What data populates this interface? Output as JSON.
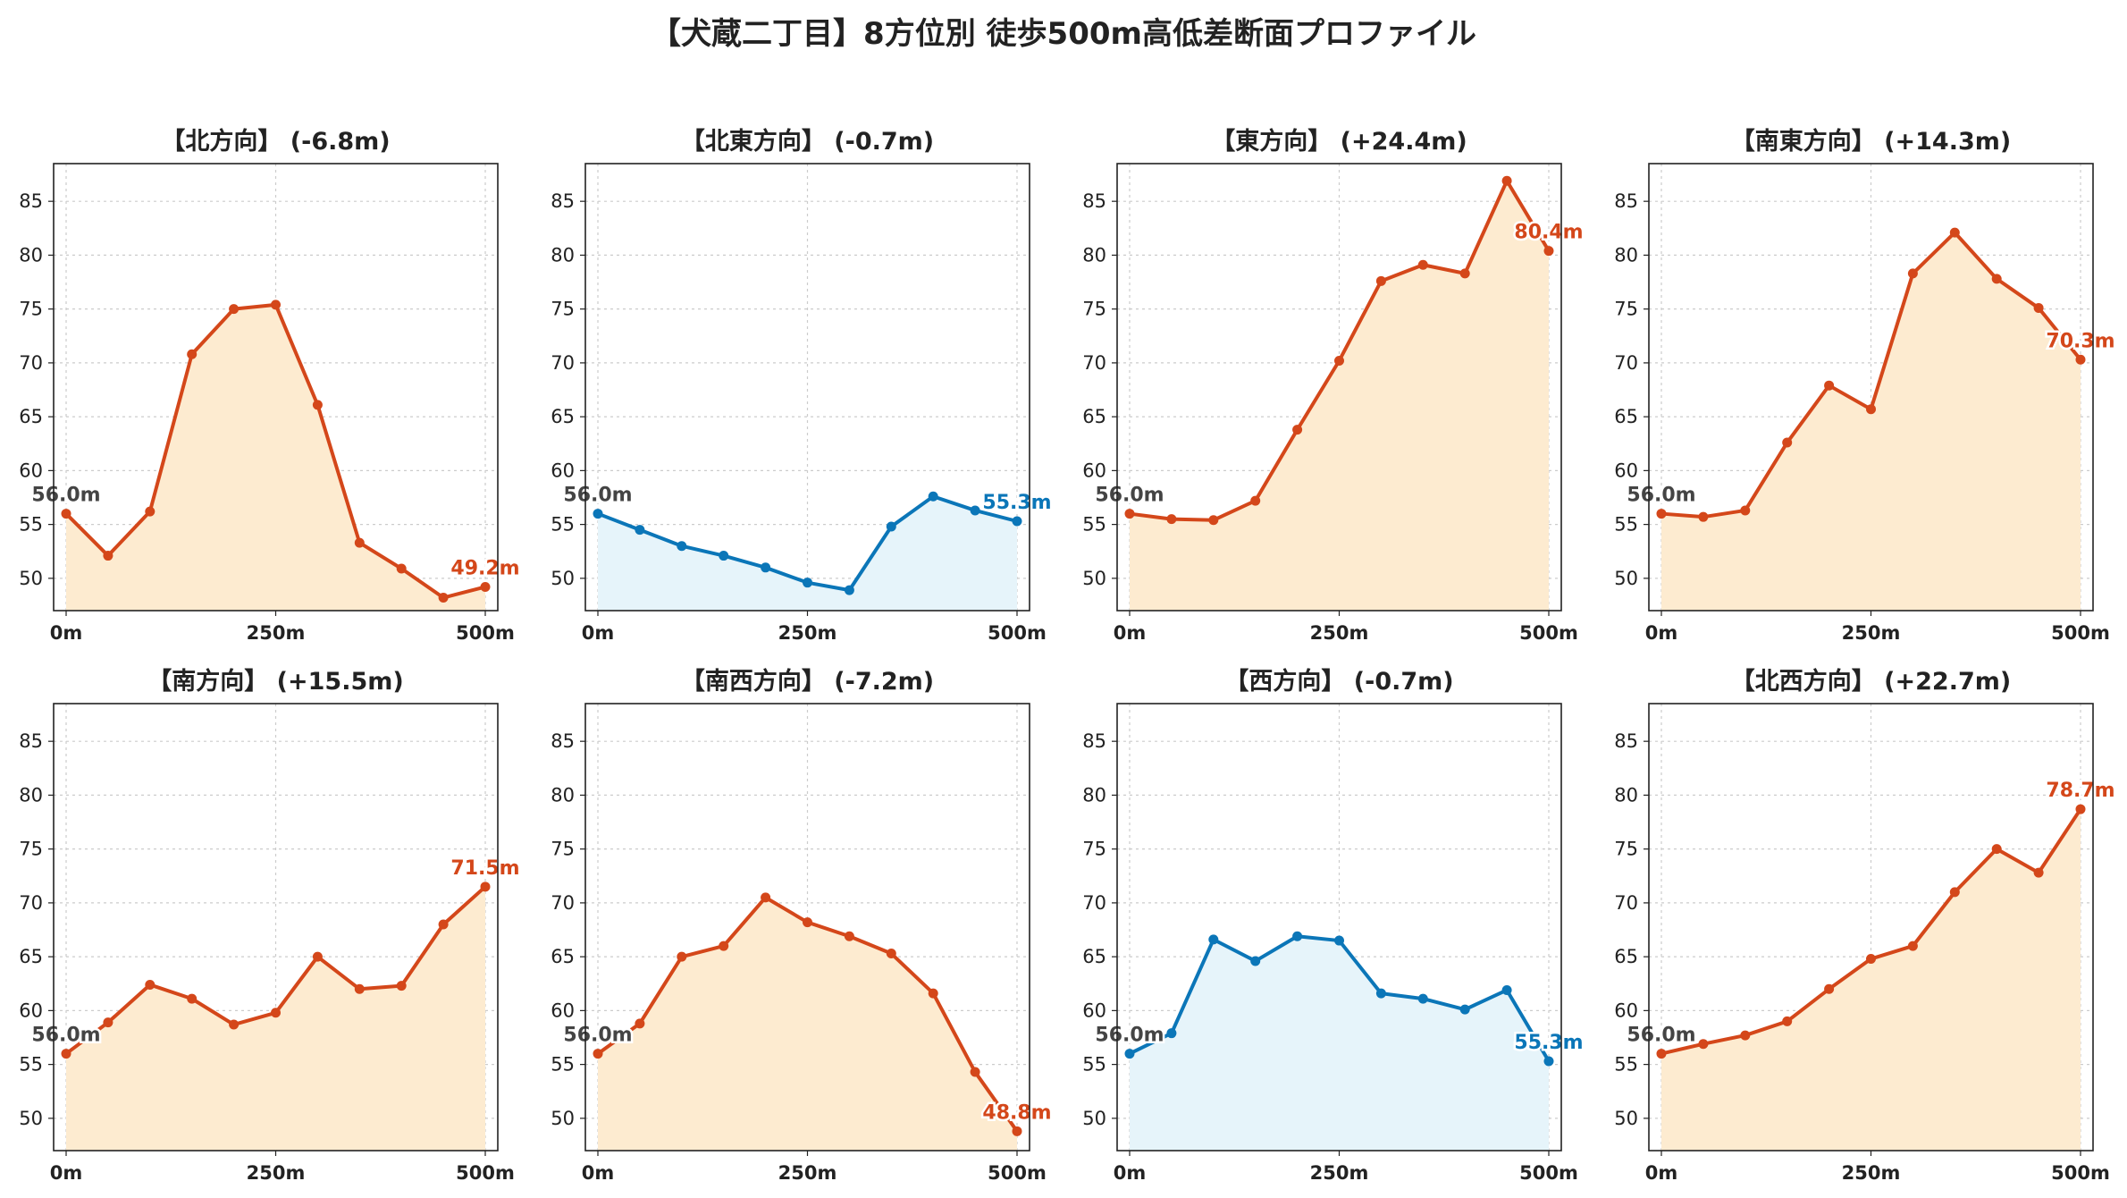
{
  "suptitle": "【犬蔵二丁目】8方位別 徒歩500m高低差断面プロファイル",
  "colors": {
    "uphill_line": "#d4471a",
    "uphill_fill": "#fdebd0",
    "flat_line": "#0b76b8",
    "flat_fill": "#e6f4fa",
    "start_label": "#444444",
    "grid": "#cccccc"
  },
  "chart_data": [
    {
      "type": "area",
      "title": "【北方向】 (-6.8m)",
      "x": [
        0,
        50,
        100,
        150,
        200,
        250,
        300,
        350,
        400,
        450,
        500
      ],
      "values": [
        56.0,
        52.1,
        56.2,
        70.8,
        75.0,
        75.4,
        66.1,
        53.3,
        50.9,
        48.2,
        49.2
      ],
      "xticks": [
        "0m",
        "250m",
        "500m"
      ],
      "yticks": [
        "50",
        "55",
        "60",
        "65",
        "70",
        "75",
        "80",
        "85"
      ],
      "ylim": [
        47,
        88.5
      ],
      "start_label": "56.0m",
      "end_label": "49.2m",
      "color_scheme": "uphill",
      "grid": true
    },
    {
      "type": "area",
      "title": "【北東方向】 (-0.7m)",
      "x": [
        0,
        50,
        100,
        150,
        200,
        250,
        300,
        350,
        400,
        450,
        500
      ],
      "values": [
        56.0,
        54.5,
        53.0,
        52.1,
        51.0,
        49.6,
        48.9,
        54.8,
        57.6,
        56.3,
        55.3
      ],
      "xticks": [
        "0m",
        "250m",
        "500m"
      ],
      "yticks": [
        "50",
        "55",
        "60",
        "65",
        "70",
        "75",
        "80",
        "85"
      ],
      "ylim": [
        47,
        88.5
      ],
      "start_label": "56.0m",
      "end_label": "55.3m",
      "color_scheme": "flat",
      "grid": true
    },
    {
      "type": "area",
      "title": "【東方向】 (+24.4m)",
      "x": [
        0,
        50,
        100,
        150,
        200,
        250,
        300,
        350,
        400,
        450,
        500
      ],
      "values": [
        56.0,
        55.5,
        55.4,
        57.2,
        63.8,
        70.2,
        77.6,
        79.1,
        78.3,
        86.9,
        80.4
      ],
      "xticks": [
        "0m",
        "250m",
        "500m"
      ],
      "yticks": [
        "50",
        "55",
        "60",
        "65",
        "70",
        "75",
        "80",
        "85"
      ],
      "ylim": [
        47,
        88.5
      ],
      "start_label": "56.0m",
      "end_label": "80.4m",
      "color_scheme": "uphill",
      "grid": true
    },
    {
      "type": "area",
      "title": "【南東方向】 (+14.3m)",
      "x": [
        0,
        50,
        100,
        150,
        200,
        250,
        300,
        350,
        400,
        450,
        500
      ],
      "values": [
        56.0,
        55.7,
        56.3,
        62.6,
        67.9,
        65.7,
        78.3,
        82.1,
        77.8,
        75.1,
        70.3
      ],
      "xticks": [
        "0m",
        "250m",
        "500m"
      ],
      "yticks": [
        "50",
        "55",
        "60",
        "65",
        "70",
        "75",
        "80",
        "85"
      ],
      "ylim": [
        47,
        88.5
      ],
      "start_label": "56.0m",
      "end_label": "70.3m",
      "color_scheme": "uphill",
      "grid": true
    },
    {
      "type": "area",
      "title": "【南方向】 (+15.5m)",
      "x": [
        0,
        50,
        100,
        150,
        200,
        250,
        300,
        350,
        400,
        450,
        500
      ],
      "values": [
        56.0,
        58.9,
        62.4,
        61.1,
        58.7,
        59.8,
        65.0,
        62.0,
        62.3,
        68.0,
        71.5
      ],
      "xticks": [
        "0m",
        "250m",
        "500m"
      ],
      "yticks": [
        "50",
        "55",
        "60",
        "65",
        "70",
        "75",
        "80",
        "85"
      ],
      "ylim": [
        47,
        88.5
      ],
      "start_label": "56.0m",
      "end_label": "71.5m",
      "color_scheme": "uphill",
      "grid": true
    },
    {
      "type": "area",
      "title": "【南西方向】 (-7.2m)",
      "x": [
        0,
        50,
        100,
        150,
        200,
        250,
        300,
        350,
        400,
        450,
        500
      ],
      "values": [
        56.0,
        58.8,
        65.0,
        66.0,
        70.5,
        68.2,
        66.9,
        65.3,
        61.6,
        54.3,
        48.8
      ],
      "xticks": [
        "0m",
        "250m",
        "500m"
      ],
      "yticks": [
        "50",
        "55",
        "60",
        "65",
        "70",
        "75",
        "80",
        "85"
      ],
      "ylim": [
        47,
        88.5
      ],
      "start_label": "56.0m",
      "end_label": "48.8m",
      "color_scheme": "uphill",
      "grid": true
    },
    {
      "type": "area",
      "title": "【西方向】 (-0.7m)",
      "x": [
        0,
        50,
        100,
        150,
        200,
        250,
        300,
        350,
        400,
        450,
        500
      ],
      "values": [
        56.0,
        57.9,
        66.6,
        64.6,
        66.9,
        66.5,
        61.6,
        61.1,
        60.1,
        61.9,
        55.3
      ],
      "xticks": [
        "0m",
        "250m",
        "500m"
      ],
      "yticks": [
        "50",
        "55",
        "60",
        "65",
        "70",
        "75",
        "80",
        "85"
      ],
      "ylim": [
        47,
        88.5
      ],
      "start_label": "56.0m",
      "end_label": "55.3m",
      "color_scheme": "flat",
      "grid": true
    },
    {
      "type": "area",
      "title": "【北西方向】 (+22.7m)",
      "x": [
        0,
        50,
        100,
        150,
        200,
        250,
        300,
        350,
        400,
        450,
        500
      ],
      "values": [
        56.0,
        56.9,
        57.7,
        59.0,
        62.0,
        64.8,
        66.0,
        71.0,
        75.0,
        72.8,
        78.7
      ],
      "xticks": [
        "0m",
        "250m",
        "500m"
      ],
      "yticks": [
        "50",
        "55",
        "60",
        "65",
        "70",
        "75",
        "80",
        "85"
      ],
      "ylim": [
        47,
        88.5
      ],
      "start_label": "56.0m",
      "end_label": "78.7m",
      "color_scheme": "uphill",
      "grid": true
    }
  ]
}
